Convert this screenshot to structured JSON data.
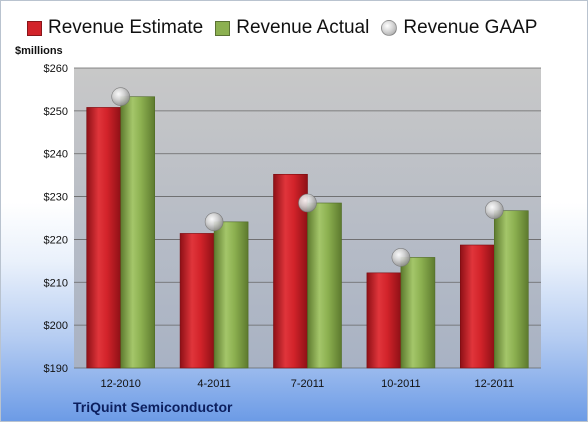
{
  "legend": {
    "estimate": "Revenue Estimate",
    "actual": "Revenue Actual",
    "gaap": "Revenue GAAP"
  },
  "unit_label": "$millions",
  "company": "TriQuint Semiconductor",
  "colors": {
    "estimate": "#d2232a",
    "actual": "#8cb050",
    "gaap": "#c0c0c0",
    "plot_bg": "#c8c8c8",
    "company_text": "#0c1f5e"
  },
  "chart_data": {
    "type": "bar",
    "title": "",
    "xlabel": "",
    "ylabel": "$millions",
    "categories": [
      "12-2010",
      "4-2011",
      "7-2011",
      "10-2011",
      "12-2011"
    ],
    "ylim": [
      190,
      260
    ],
    "yticks": [
      "$190",
      "$200",
      "$210",
      "$220",
      "$230",
      "$240",
      "$250",
      "$260"
    ],
    "ytick_values": [
      190,
      200,
      210,
      220,
      230,
      240,
      250,
      260
    ],
    "grid": true,
    "legend_position": "top",
    "series": [
      {
        "name": "Revenue Estimate",
        "type": "bar",
        "values": [
          250.8,
          221.4,
          235.2,
          212.2,
          218.7
        ]
      },
      {
        "name": "Revenue Actual",
        "type": "bar",
        "values": [
          253.3,
          224.1,
          228.5,
          215.8,
          226.7
        ]
      },
      {
        "name": "Revenue GAAP",
        "type": "marker",
        "values": [
          253.3,
          224.1,
          228.5,
          215.8,
          226.9
        ]
      }
    ]
  }
}
